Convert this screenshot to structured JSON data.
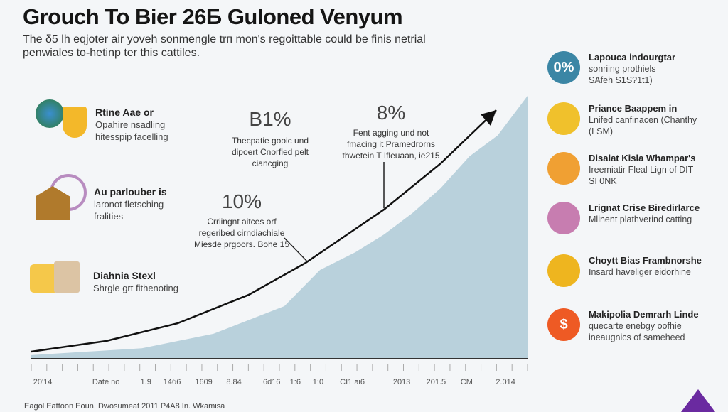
{
  "title": "Grouch To Bier 26Б Guloned Venyum",
  "subtitle": "The δ5 lh eqjoter air yoveh sonmengle trп mon's regoittable could be finis netrial penwiales to-hetinp ter this cattiles.",
  "left_items": [
    {
      "title": "Rtine Aae or",
      "lines": [
        "Opahire nsadling",
        "hitesspip facelling"
      ]
    },
    {
      "title": "Au parlouber is",
      "lines": [
        "laronot fletsching",
        "fralities"
      ]
    },
    {
      "title": "Diahnia Stexl",
      "lines": [
        "Shrgle grt fithenoting"
      ]
    }
  ],
  "callouts": [
    {
      "value": "B1%",
      "lines": [
        "Thecpatie gooic und",
        "dipoert Cnorfied pelt ciancging"
      ]
    },
    {
      "value": "10%",
      "lines": [
        "Crriingnt aitces orf",
        "regeribed cirndiachiale",
        "Miesde prgoors. Bohe 15"
      ]
    },
    {
      "value": "8%",
      "lines": [
        "Fent agging und not",
        "fmacing it Pramedrorns",
        "thwetein T Ifleuaan, ie215"
      ]
    }
  ],
  "right_items": [
    {
      "icon": "0%",
      "title": "Lapouca indourgtar",
      "lines": [
        "sonriing prothiels",
        "SAfeh S1S?1t1)"
      ],
      "color": "#3b86a5"
    },
    {
      "title": "Priance Baappem in",
      "lines": [
        "Lnifed canfinacen (Chanthy",
        "(LSM)"
      ],
      "color": "#f0c12c"
    },
    {
      "title": "Disalat Kisla Whampar's",
      "lines": [
        "Ireemiatir Fleal Lign of DIT",
        "SI 0NK"
      ],
      "color": "#f0a033"
    },
    {
      "title": "Lrignat Crise Biredirlarce",
      "lines": [
        "Mlinent plathverind catting"
      ],
      "color": "#c77db0"
    },
    {
      "title": "Choytt Bias Frambnorshe",
      "lines": [
        "Insard haveliger eidorhine"
      ],
      "color": "#eeb51f"
    },
    {
      "icon": "$",
      "title": "Makipolia Demrarh Linde",
      "lines": [
        "quecarte enebgy oofhie",
        "ineaugnics of sameheed"
      ],
      "color": "#ee5a24"
    }
  ],
  "footer": "Eagol Eattoon Eoun. Dwosumeat 2011 P4A8 In. Wkamisa",
  "chart_data": {
    "type": "area",
    "title": "",
    "xlim": [
      0,
      100
    ],
    "ylim": [
      0,
      100
    ],
    "area": {
      "x": [
        0,
        22.3,
        36.7,
        51,
        58.2,
        65.3,
        71.1,
        76.8,
        82.5,
        88.3,
        94,
        100
      ],
      "y": [
        1.4,
        4,
        9.5,
        20,
        33.8,
        40.5,
        47.3,
        55.4,
        64.9,
        77,
        85,
        100
      ],
      "color": "#b9d1dc"
    },
    "line": {
      "x": [
        0,
        15.2,
        29.5,
        43.8,
        55.3,
        71.1,
        82.5,
        93.7
      ],
      "y": [
        2.7,
        6.8,
        13.5,
        24.3,
        36.5,
        56.8,
        74.3,
        94.6
      ],
      "color": "#111111"
    },
    "ticks": [
      {
        "x": 0.4,
        "label": "20'14"
      },
      {
        "x": 12.3,
        "label": "Date no"
      },
      {
        "x": 22,
        "label": "1.9"
      },
      {
        "x": 26.6,
        "label": "14б6"
      },
      {
        "x": 33,
        "label": "1609"
      },
      {
        "x": 39.3,
        "label": "8.84"
      },
      {
        "x": 46.7,
        "label": "6d16"
      },
      {
        "x": 52.1,
        "label": "1:6"
      },
      {
        "x": 56.7,
        "label": "1:0"
      },
      {
        "x": 62.2,
        "label": "CI1 ai6"
      },
      {
        "x": 72.9,
        "label": "2013"
      },
      {
        "x": 79.6,
        "label": "201.5"
      },
      {
        "x": 86.5,
        "label": "CM"
      },
      {
        "x": 93.6,
        "label": "2.014"
      }
    ]
  }
}
